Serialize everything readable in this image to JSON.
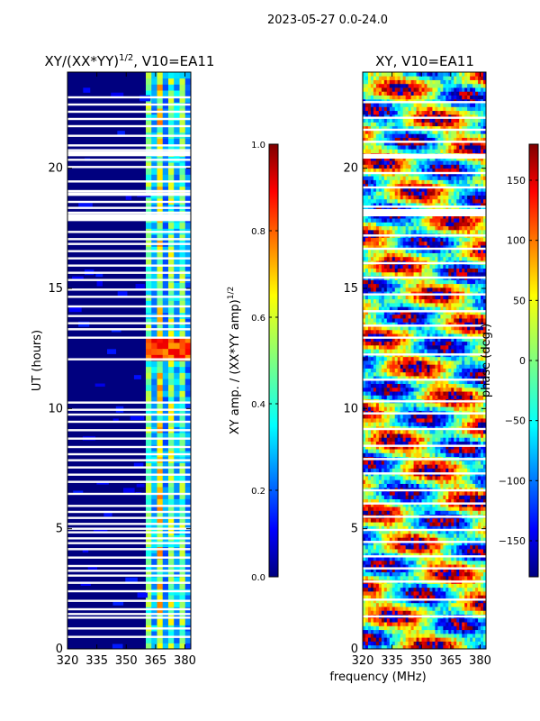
{
  "suptitle": "2023-05-27 0.0-24.0",
  "xlabel": "frequency (MHz)",
  "colors": {
    "background_blue": "#00007f",
    "jet": [
      "#00007f",
      "#0000ff",
      "#007fff",
      "#00ffff",
      "#7fff7f",
      "#ffff00",
      "#ff7f00",
      "#ff0000",
      "#7f0000"
    ]
  },
  "chart_data": [
    {
      "type": "heatmap",
      "title": "XY/(XX*YY)",
      "title_exponent": "1/2",
      "title_suffix": ", V10=EA11",
      "ylabel": "UT (hours)",
      "xlim": [
        320,
        383
      ],
      "ylim": [
        0,
        24
      ],
      "x_ticks": [
        "320",
        "335",
        "350",
        "365",
        "380"
      ],
      "y_ticks": [
        "0",
        "5",
        "10",
        "15",
        "20"
      ],
      "colorbar": {
        "label": "XY amp. / (XX*YY amp)",
        "label_exponent": "1/2",
        "range": [
          0.0,
          1.0
        ],
        "ticks": [
          "0.0",
          "0.2",
          "0.4",
          "0.6",
          "0.8",
          "1.0"
        ]
      },
      "bright_band_MHz": [
        360,
        383
      ],
      "bright_feature_hours": [
        12.1,
        12.9
      ],
      "flagged_gaps_hours": [
        0.5,
        0.85,
        1.3,
        1.45,
        1.65,
        2.0,
        2.4,
        2.75,
        3.05,
        3.25,
        3.45,
        3.8,
        4.15,
        4.4,
        4.6,
        4.85,
        5.0,
        5.2,
        5.45,
        5.7,
        5.95,
        6.45,
        6.95,
        7.25,
        7.55,
        7.85,
        8.1,
        8.4,
        8.75,
        9.1,
        9.45,
        9.75,
        9.95,
        10.25,
        12.05,
        12.95,
        13.3,
        13.55,
        13.85,
        14.25,
        14.65,
        14.95,
        15.35,
        15.65,
        15.95,
        16.25,
        16.55,
        16.85,
        17.05,
        17.35,
        18.15,
        18.35,
        18.6,
        19.05,
        19.45,
        20.05,
        20.35,
        20.75,
        20.95,
        21.35,
        21.75,
        22.05,
        22.35,
        22.65,
        22.95
      ],
      "wide_gaps_hours": [
        [
          17.8,
          18.1
        ],
        [
          20.5,
          20.7
        ],
        [
          18.85,
          19.0
        ]
      ]
    },
    {
      "type": "heatmap",
      "title": "XY, V10=EA11",
      "ylabel": "",
      "xlim": [
        320,
        383
      ],
      "ylim": [
        0,
        24
      ],
      "x_ticks": [
        "320",
        "335",
        "350",
        "365",
        "380"
      ],
      "y_ticks": [
        "0",
        "5",
        "10",
        "15",
        "20"
      ],
      "colorbar": {
        "label": "phase (deg.)",
        "range": [
          -180,
          180
        ],
        "ticks": [
          "−150",
          "−100",
          "−50",
          "0",
          "50",
          "100",
          "150"
        ]
      },
      "flagged_gaps_hours": [
        1.35,
        2.05,
        2.8,
        3.35,
        3.85,
        4.45,
        4.95,
        5.5,
        6.05,
        6.6,
        7.3,
        7.9,
        8.45,
        9.15,
        9.8,
        10.3,
        11.2,
        12.25,
        12.95,
        13.45,
        14.05,
        14.75,
        15.45,
        16.05,
        16.65,
        17.2,
        18.4,
        19.2,
        19.8,
        20.45,
        21.1,
        21.6,
        22.1,
        22.75
      ],
      "wide_gaps_hours": [
        [
          18.0,
          18.3
        ],
        [
          20.4,
          20.6
        ]
      ]
    }
  ]
}
